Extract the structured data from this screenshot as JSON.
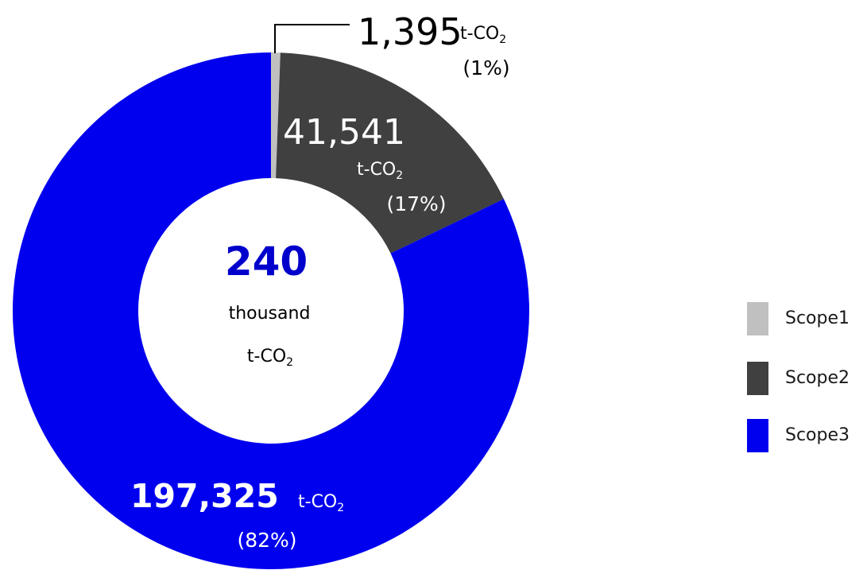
{
  "chart_data": {
    "type": "pie",
    "variant": "donut",
    "categories": [
      "Scope1",
      "Scope2",
      "Scope3"
    ],
    "values": [
      1395,
      41541,
      197325
    ],
    "percents": [
      "(1%)",
      "(17%)",
      "(82%)"
    ],
    "value_labels": [
      "1,395",
      "41,541",
      "197,325"
    ],
    "unit": "t-CO",
    "unit_subscript": "2",
    "colors": [
      "#c0c0c0",
      "#404040",
      "#0000ee"
    ],
    "legend_position": "right",
    "center": {
      "value": "240",
      "line1": "thousand",
      "line2": "t-CO",
      "line2_subscript": "2"
    }
  }
}
